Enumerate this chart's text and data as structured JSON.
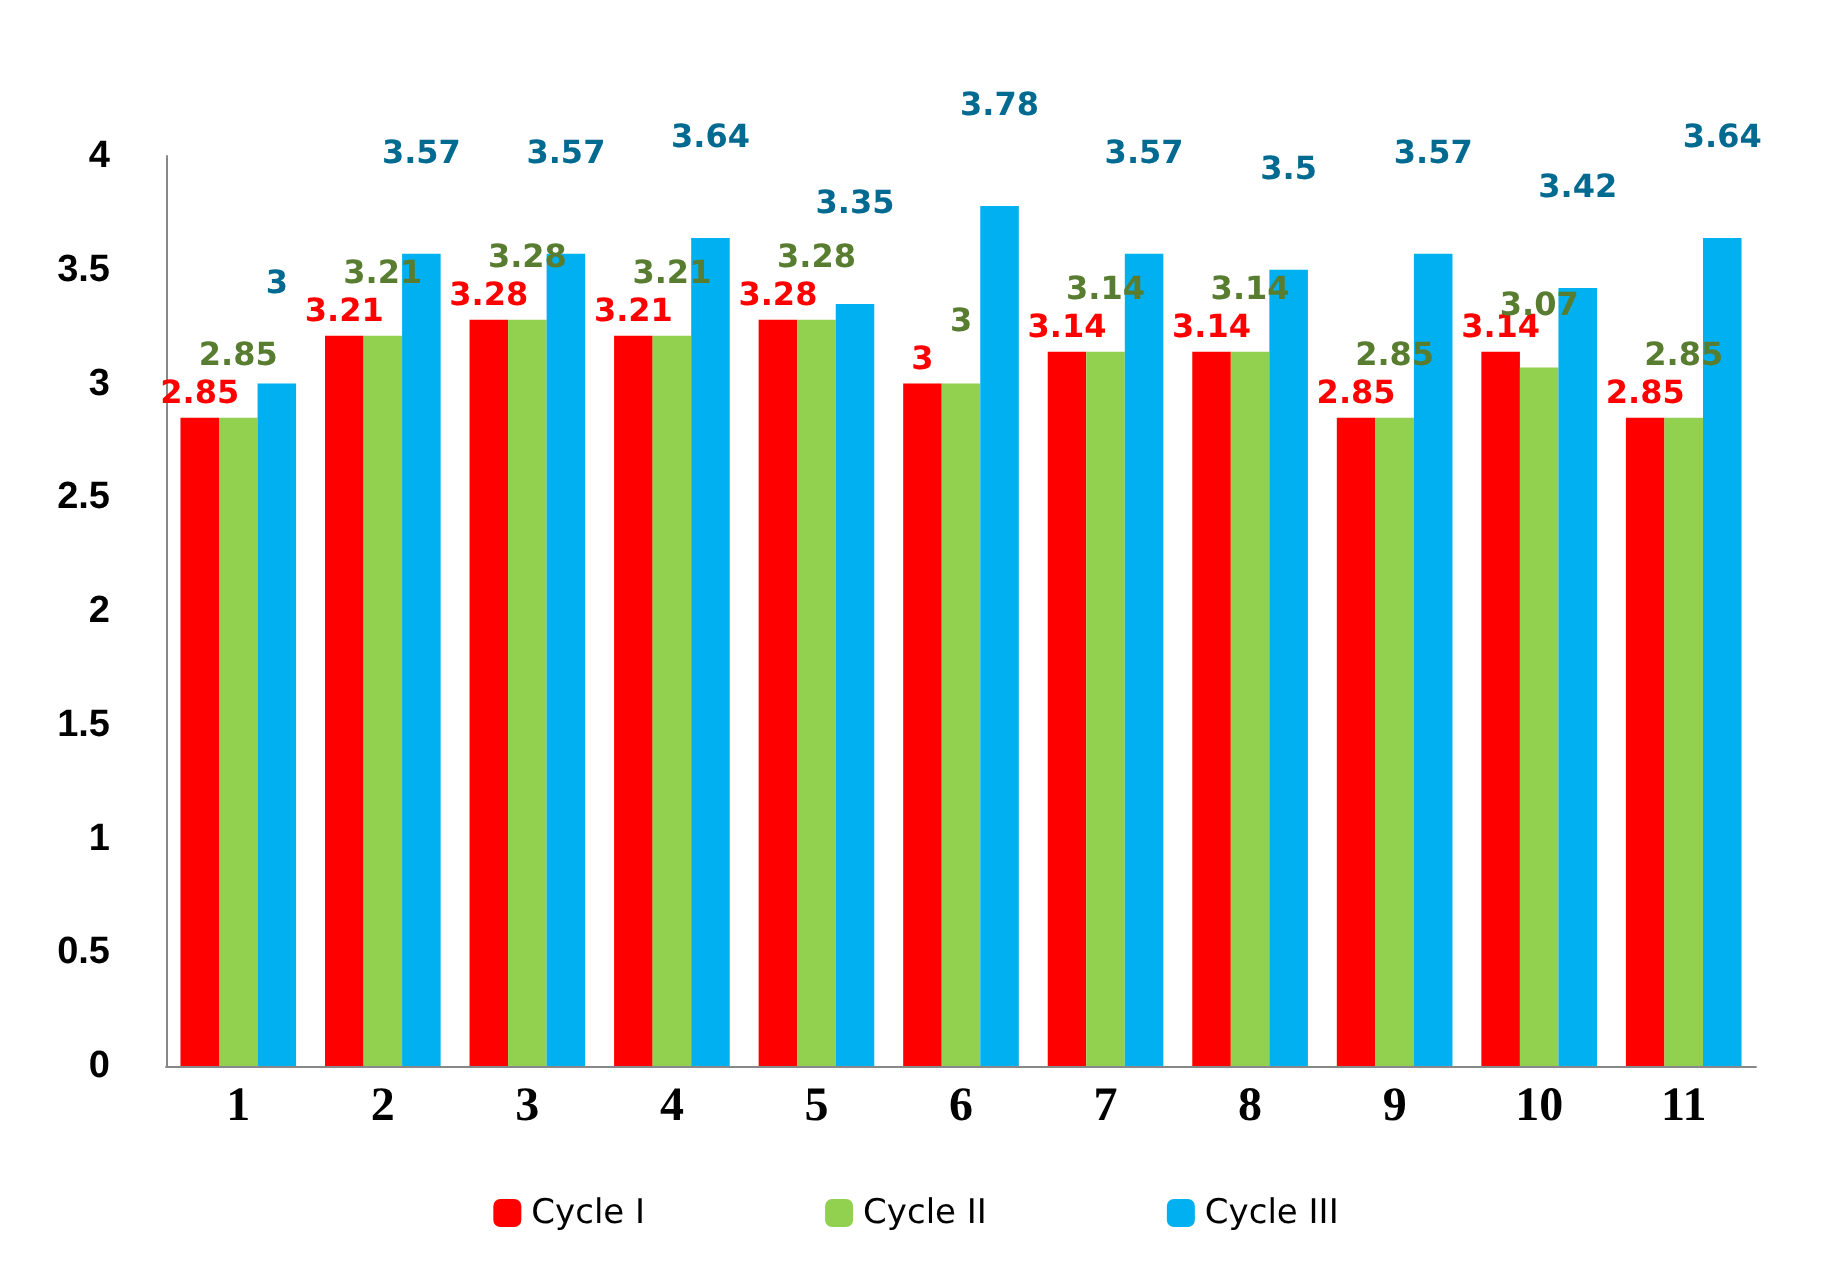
{
  "chart_data": {
    "type": "bar",
    "categories": [
      "1",
      "2",
      "3",
      "4",
      "5",
      "6",
      "7",
      "8",
      "9",
      "10",
      "11"
    ],
    "series": [
      {
        "name": "Cycle I",
        "color": "#ff0000",
        "values": [
          2.85,
          3.21,
          3.28,
          3.21,
          3.28,
          3,
          3.14,
          3.14,
          2.85,
          3.14,
          2.85
        ]
      },
      {
        "name": "Cycle II",
        "color": "#92d050",
        "values": [
          2.85,
          3.21,
          3.28,
          3.21,
          3.28,
          3,
          3.14,
          3.14,
          2.85,
          3.07,
          2.85
        ]
      },
      {
        "name": "Cycle III",
        "color": "#00b0f0",
        "values": [
          3,
          3.57,
          3.57,
          3.64,
          3.35,
          3.78,
          3.57,
          3.5,
          3.57,
          3.42,
          3.64
        ]
      }
    ],
    "ylim": [
      0,
      4
    ],
    "yticks": [
      0,
      0.5,
      1,
      1.5,
      2,
      2.5,
      3,
      3.5,
      4
    ],
    "grid": false,
    "legend": "bottom",
    "data_labels": true
  }
}
